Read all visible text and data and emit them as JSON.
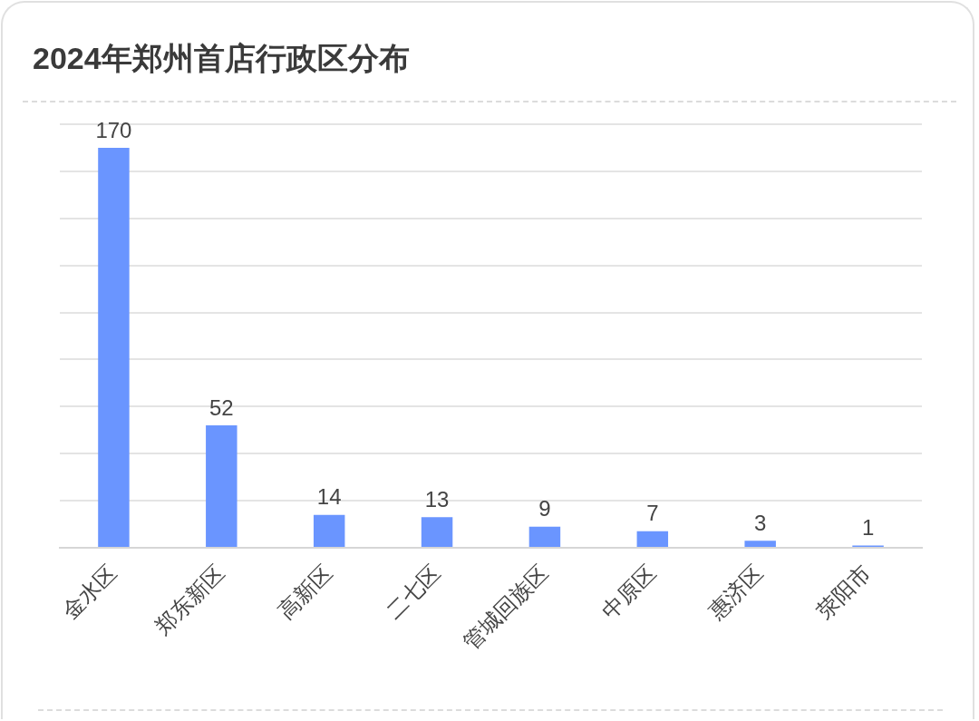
{
  "chart_data": {
    "type": "bar",
    "title": "2024年郑州首店行政区分布",
    "categories": [
      "金水区",
      "郑东新区",
      "高新区",
      "二七区",
      "管城回族区",
      "中原区",
      "惠济区",
      "荥阳市"
    ],
    "values": [
      170,
      52,
      14,
      13,
      9,
      7,
      3,
      1
    ],
    "color": "#6a95ff",
    "ylim": [
      0,
      180
    ],
    "yticks": [
      {
        "value": 0,
        "label": null
      },
      {
        "value": 20,
        "label": null
      },
      {
        "value": 40,
        "label": null
      },
      {
        "value": 60,
        "label": null
      },
      {
        "value": 80,
        "label": null
      },
      {
        "value": 100,
        "label": null
      },
      {
        "value": 120,
        "label": null
      },
      {
        "value": 140,
        "label": null
      },
      {
        "value": 160,
        "label": null
      },
      {
        "value": 180,
        "label": null
      }
    ],
    "grid": "y",
    "data_labels": true,
    "tick_labels": "x"
  }
}
